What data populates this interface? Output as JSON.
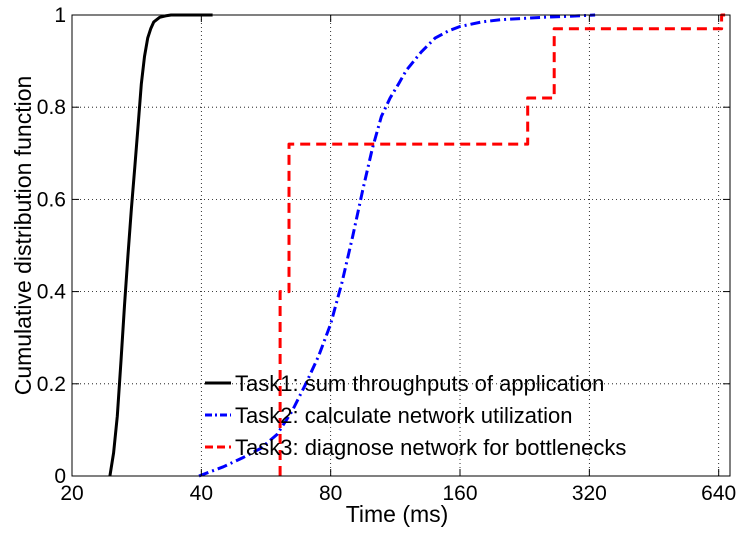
{
  "chart_data": {
    "type": "line",
    "title": "",
    "xlabel": "Time (ms)",
    "ylabel": "Cumulative distribution function",
    "x_scale": "log2",
    "xlim": [
      20,
      680
    ],
    "ylim": [
      0,
      1
    ],
    "x_ticks": [
      20,
      40,
      80,
      160,
      320,
      640
    ],
    "x_tick_labels": [
      "20",
      "40",
      "80",
      "160",
      "320",
      "640"
    ],
    "y_ticks": [
      0,
      0.2,
      0.4,
      0.6,
      0.8,
      1
    ],
    "y_tick_labels": [
      "0",
      "0.2",
      "0.4",
      "0.6",
      "0.8",
      "1"
    ],
    "grid": true,
    "legend_position": "bottom-right",
    "series": [
      {
        "name": "Task1: sum throughputs of application",
        "color": "#000000",
        "style": "solid",
        "x": [
          24.5,
          25,
          25.5,
          26,
          26.5,
          27,
          27.5,
          28,
          28.5,
          29,
          29.5,
          30,
          30.5,
          31,
          31.5,
          32,
          33,
          34,
          36,
          38,
          40,
          42.5
        ],
        "y": [
          0,
          0.05,
          0.13,
          0.25,
          0.37,
          0.48,
          0.58,
          0.67,
          0.76,
          0.85,
          0.91,
          0.95,
          0.97,
          0.985,
          0.99,
          0.995,
          0.998,
          1,
          1,
          1,
          1,
          1
        ]
      },
      {
        "name": "Task2: calculate network utilization",
        "color": "#0000ff",
        "style": "dashdot",
        "x": [
          39.5,
          45,
          50,
          55,
          60,
          65,
          70,
          75,
          80,
          85,
          90,
          95,
          100,
          105,
          110,
          115,
          120,
          130,
          140,
          150,
          160,
          180,
          200,
          250,
          300,
          330
        ],
        "y": [
          0,
          0.02,
          0.04,
          0.06,
          0.09,
          0.14,
          0.2,
          0.26,
          0.33,
          0.42,
          0.52,
          0.62,
          0.71,
          0.78,
          0.82,
          0.85,
          0.88,
          0.92,
          0.95,
          0.965,
          0.975,
          0.985,
          0.99,
          0.995,
          0.998,
          1
        ]
      },
      {
        "name": "Task3: diagnose network for bottlenecks",
        "color": "#ff0000",
        "style": "dashed",
        "x": [
          61,
          61,
          64,
          64,
          230,
          230,
          265,
          265,
          650,
          650,
          665
        ],
        "y": [
          0,
          0.4,
          0.4,
          0.72,
          0.72,
          0.82,
          0.82,
          0.97,
          0.97,
          1,
          1
        ]
      }
    ]
  }
}
